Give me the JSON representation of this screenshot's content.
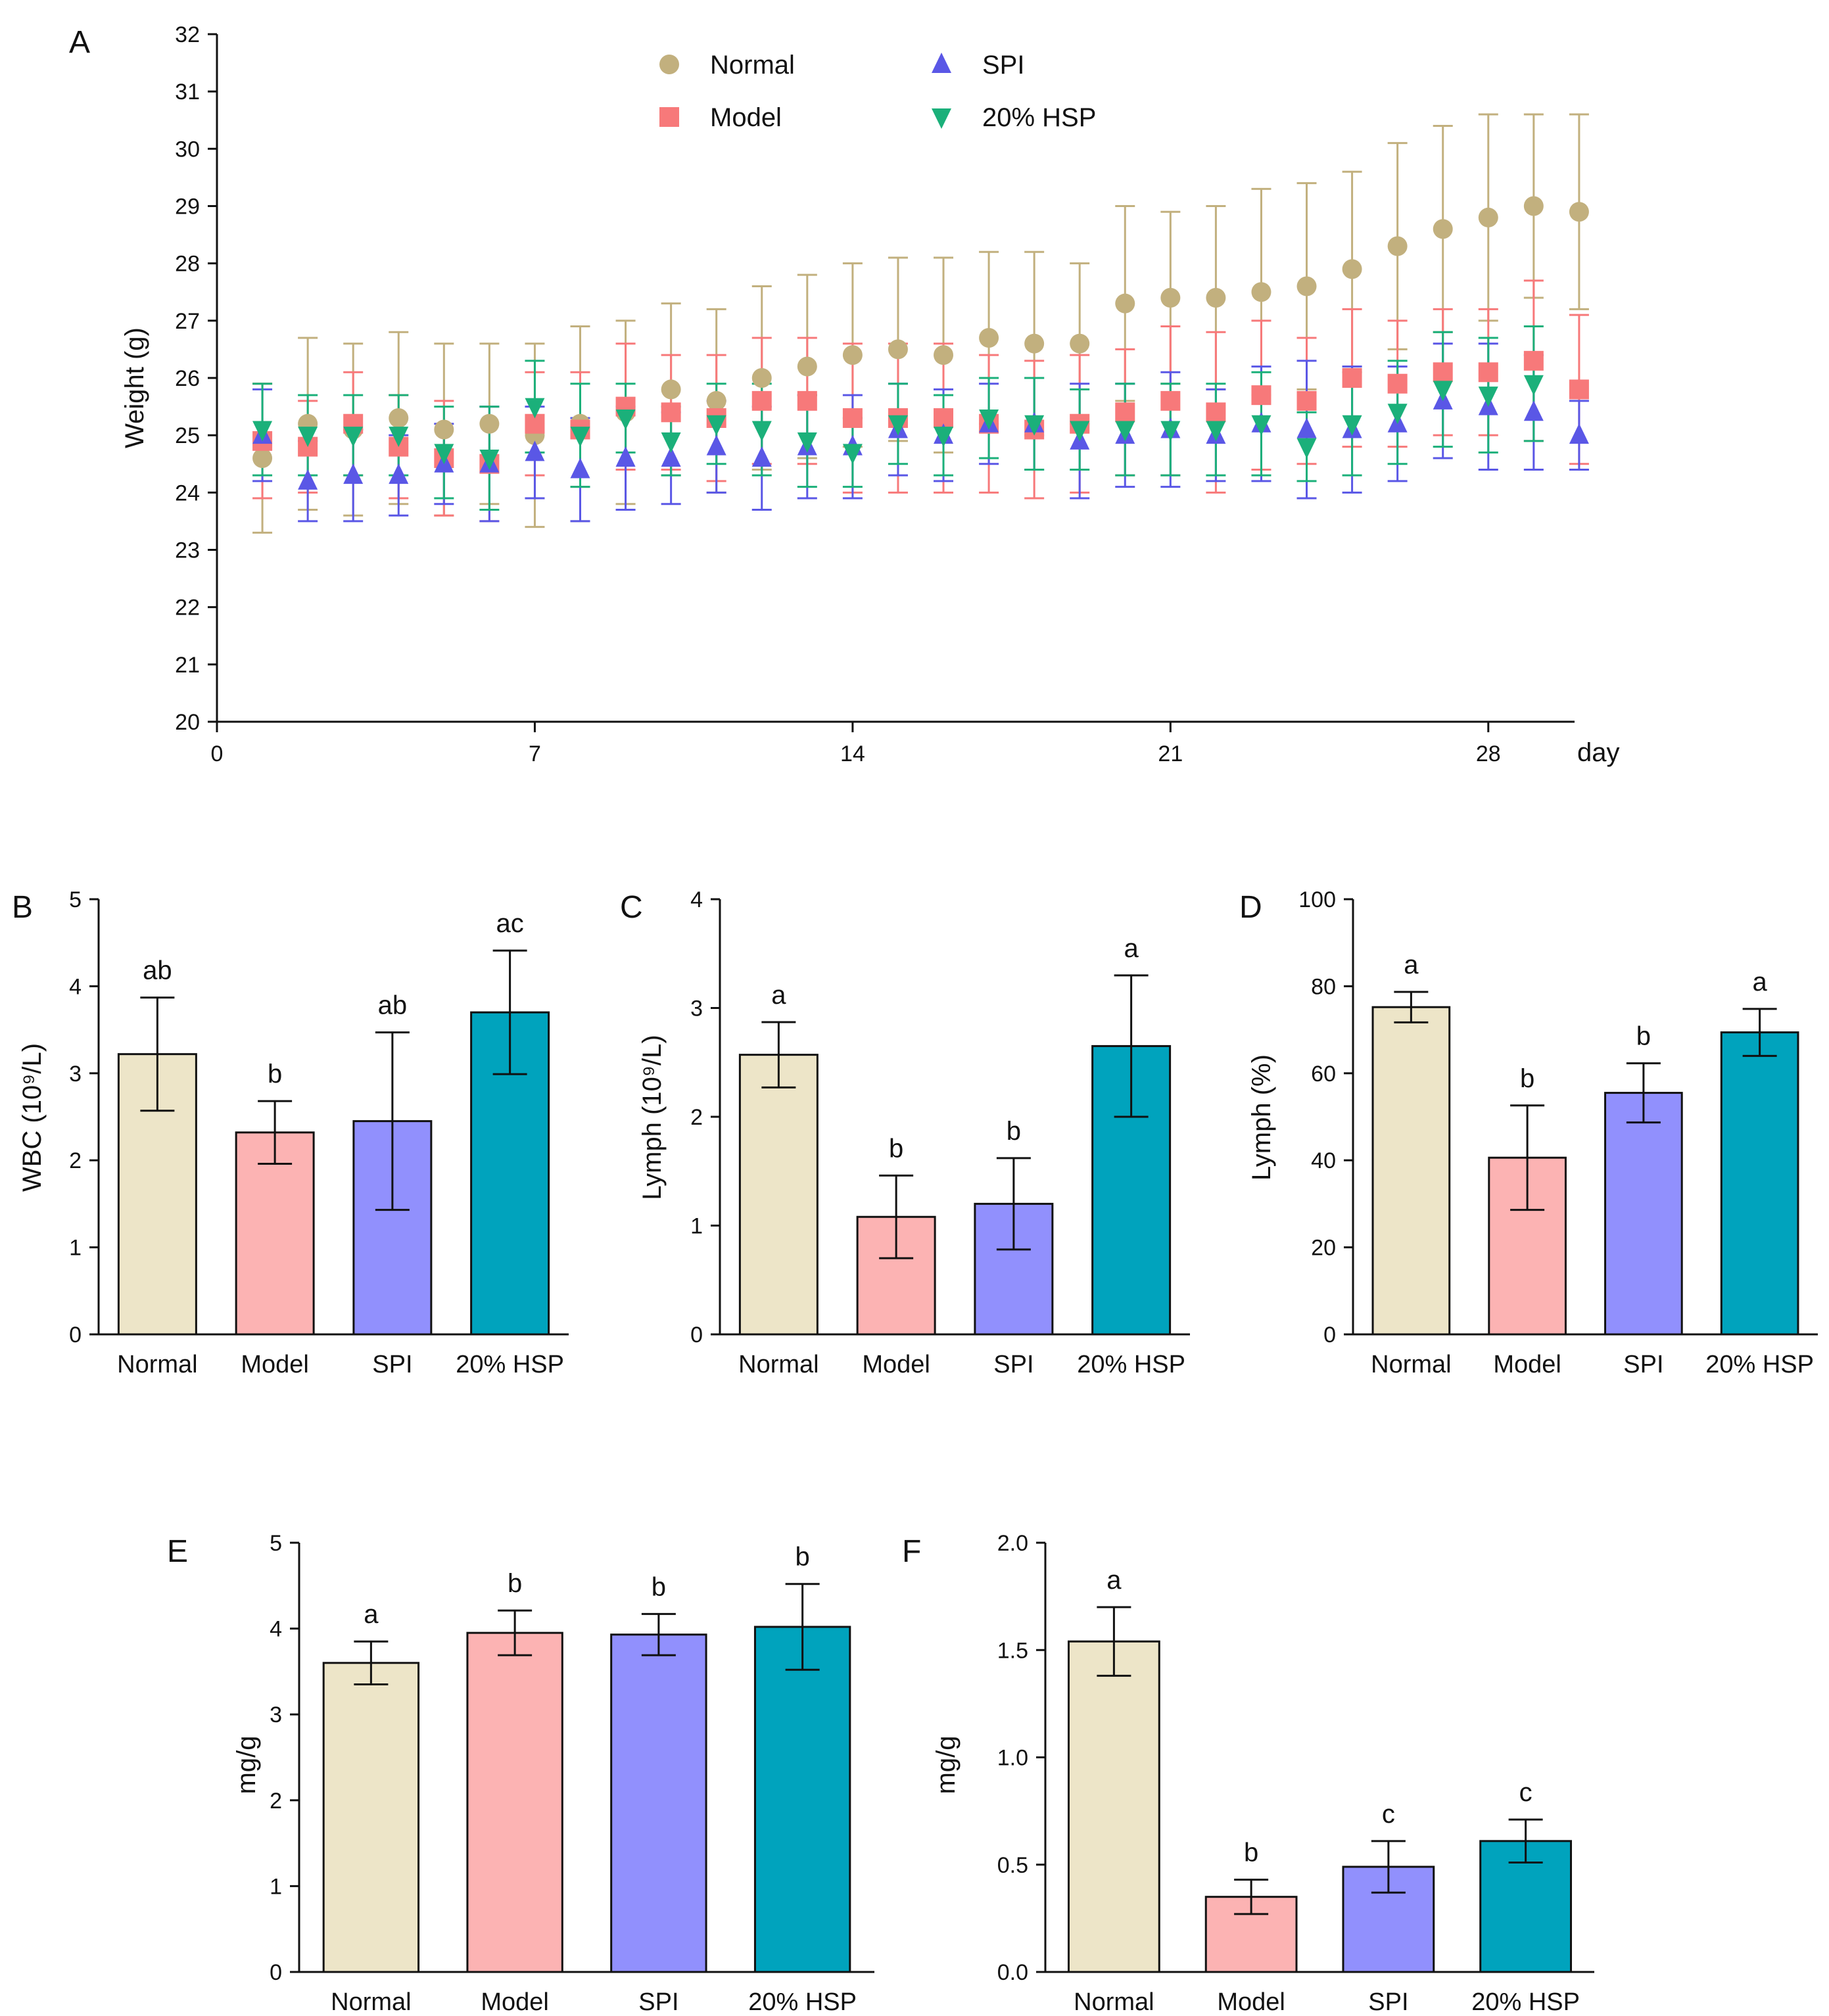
{
  "chart_data": [
    {
      "panel": "A",
      "type": "scatter",
      "title": "",
      "xlabel": "day",
      "ylabel": "Weight (g)",
      "xlim": [
        0,
        30
      ],
      "ylim": [
        20,
        32
      ],
      "xticks": [
        0,
        7,
        14,
        21,
        28
      ],
      "yticks": [
        20,
        21,
        22,
        23,
        24,
        25,
        26,
        27,
        28,
        29,
        30,
        31,
        32
      ],
      "legend": [
        "Normal",
        "Model",
        "SPI",
        "20% HSP"
      ],
      "x": [
        1,
        2,
        3,
        4,
        5,
        6,
        7,
        8,
        9,
        10,
        11,
        12,
        13,
        14,
        15,
        16,
        17,
        18,
        19,
        20,
        21,
        22,
        23,
        24,
        25,
        26,
        27,
        28,
        29,
        30
      ],
      "series": [
        {
          "name": "Normal",
          "marker": "circle",
          "color": "#c2b07e",
          "values": [
            24.6,
            25.2,
            25.1,
            25.3,
            25.1,
            25.2,
            25.0,
            25.2,
            25.4,
            25.8,
            25.6,
            26.0,
            26.2,
            26.4,
            26.5,
            26.4,
            26.7,
            26.6,
            26.6,
            27.3,
            27.4,
            27.4,
            27.5,
            27.6,
            27.9,
            28.3,
            28.6,
            28.8,
            29.0,
            28.9
          ],
          "errors": [
            1.3,
            1.5,
            1.5,
            1.5,
            1.5,
            1.4,
            1.6,
            1.7,
            1.6,
            1.5,
            1.6,
            1.6,
            1.6,
            1.6,
            1.6,
            1.7,
            1.5,
            1.6,
            1.4,
            1.7,
            1.5,
            1.6,
            1.8,
            1.8,
            1.7,
            1.8,
            1.8,
            1.8,
            1.6,
            1.7
          ]
        },
        {
          "name": "Model",
          "marker": "square",
          "color": "#f7797a",
          "values": [
            24.9,
            24.8,
            25.2,
            24.8,
            24.6,
            24.5,
            25.2,
            25.1,
            25.5,
            25.4,
            25.3,
            25.6,
            25.6,
            25.3,
            25.3,
            25.3,
            25.2,
            25.1,
            25.2,
            25.4,
            25.6,
            25.4,
            25.7,
            25.6,
            26.0,
            25.9,
            26.1,
            26.1,
            26.3,
            25.8
          ],
          "errors": [
            1.0,
            0.8,
            0.9,
            0.9,
            1.0,
            1.0,
            0.9,
            1.0,
            1.1,
            1.0,
            1.1,
            1.1,
            1.1,
            1.3,
            1.3,
            1.3,
            1.2,
            1.2,
            1.2,
            1.1,
            1.3,
            1.4,
            1.3,
            1.1,
            1.2,
            1.1,
            1.1,
            1.1,
            1.4,
            1.3
          ]
        },
        {
          "name": "SPI",
          "marker": "triangle-up",
          "color": "#5a57e6",
          "values": [
            25.0,
            24.2,
            24.3,
            24.3,
            24.5,
            24.5,
            24.7,
            24.4,
            24.6,
            24.6,
            24.8,
            24.6,
            24.8,
            24.8,
            25.1,
            25.0,
            25.2,
            25.2,
            24.9,
            25.0,
            25.1,
            25.0,
            25.2,
            25.1,
            25.1,
            25.2,
            25.6,
            25.5,
            25.4,
            25.0
          ],
          "errors": [
            0.8,
            0.7,
            0.8,
            0.7,
            0.7,
            1.0,
            0.8,
            0.9,
            0.9,
            0.8,
            0.8,
            0.9,
            0.9,
            0.9,
            0.8,
            0.8,
            0.7,
            0.8,
            1.0,
            0.9,
            1.0,
            0.8,
            1.0,
            1.2,
            1.1,
            1.0,
            1.0,
            1.1,
            1.0,
            0.6
          ]
        },
        {
          "name": "20% HSP",
          "marker": "triangle-down",
          "color": "#1bb07a",
          "values": [
            25.1,
            25.0,
            25.0,
            25.0,
            24.7,
            24.6,
            25.5,
            25.0,
            25.3,
            24.9,
            25.2,
            25.1,
            24.9,
            24.7,
            25.2,
            25.0,
            25.3,
            25.2,
            25.1,
            25.1,
            25.1,
            25.1,
            25.2,
            24.8,
            25.2,
            25.4,
            25.8,
            25.7,
            25.9,
            null
          ],
          "errors": [
            0.8,
            0.7,
            0.7,
            0.7,
            0.8,
            0.9,
            0.8,
            0.9,
            0.6,
            0.6,
            0.7,
            0.8,
            0.8,
            0.6,
            0.7,
            0.7,
            0.7,
            0.8,
            0.7,
            0.8,
            0.8,
            0.8,
            0.9,
            0.6,
            0.9,
            0.9,
            1.0,
            1.0,
            1.0,
            null
          ]
        }
      ]
    },
    {
      "panel": "B",
      "type": "bar",
      "ylabel": "WBC (10⁹/L)",
      "ylim": [
        0,
        5
      ],
      "yticks": [
        0,
        1,
        2,
        3,
        4,
        5
      ],
      "categories": [
        "Normal",
        "Model",
        "SPI",
        "20% HSP"
      ],
      "values": [
        3.22,
        2.32,
        2.45,
        3.7
      ],
      "errors": [
        0.65,
        0.36,
        1.02,
        0.71
      ],
      "letters": [
        "ab",
        "b",
        "ab",
        "ac"
      ]
    },
    {
      "panel": "C",
      "type": "bar",
      "ylabel": "Lymph (10⁹/L)",
      "ylim": [
        0,
        4
      ],
      "yticks": [
        0,
        1,
        2,
        3,
        4
      ],
      "categories": [
        "Normal",
        "Model",
        "SPI",
        "20% HSP"
      ],
      "values": [
        2.57,
        1.08,
        1.2,
        2.65
      ],
      "errors": [
        0.3,
        0.38,
        0.42,
        0.65
      ],
      "letters": [
        "a",
        "b",
        "b",
        "a"
      ]
    },
    {
      "panel": "D",
      "type": "bar",
      "ylabel": "Lymph (%)",
      "ylim": [
        0,
        100
      ],
      "yticks": [
        0,
        20,
        40,
        60,
        80,
        100
      ],
      "categories": [
        "Normal",
        "Model",
        "SPI",
        "20% HSP"
      ],
      "values": [
        75.2,
        40.6,
        55.5,
        69.4
      ],
      "errors": [
        3.5,
        12.0,
        6.8,
        5.4
      ],
      "letters": [
        "a",
        "b",
        "b",
        "a"
      ]
    },
    {
      "panel": "E",
      "type": "bar",
      "ylabel": "mg/g",
      "ylim": [
        0,
        5
      ],
      "yticks": [
        0,
        1,
        2,
        3,
        4,
        5
      ],
      "categories": [
        "Normal",
        "Model",
        "SPI",
        "20% HSP"
      ],
      "values": [
        3.6,
        3.95,
        3.93,
        4.02
      ],
      "errors": [
        0.25,
        0.26,
        0.24,
        0.5
      ],
      "letters": [
        "a",
        "b",
        "b",
        "b"
      ]
    },
    {
      "panel": "F",
      "type": "bar",
      "ylabel": "mg/g",
      "ylim": [
        0,
        2.0
      ],
      "yticks": [
        0.0,
        0.5,
        1.0,
        1.5,
        2.0
      ],
      "tickLabels": [
        "0.0",
        "0.5",
        "1.0",
        "1.5",
        "2.0"
      ],
      "categories": [
        "Normal",
        "Model",
        "SPI",
        "20% HSP"
      ],
      "values": [
        1.54,
        0.35,
        0.49,
        0.61
      ],
      "errors": [
        0.16,
        0.08,
        0.12,
        0.1
      ],
      "letters": [
        "a",
        "b",
        "c",
        "c"
      ]
    }
  ],
  "colors": {
    "bars": [
      "#ede5c8",
      "#fcb3b3",
      "#9190fd",
      "#00a3bd"
    ]
  }
}
